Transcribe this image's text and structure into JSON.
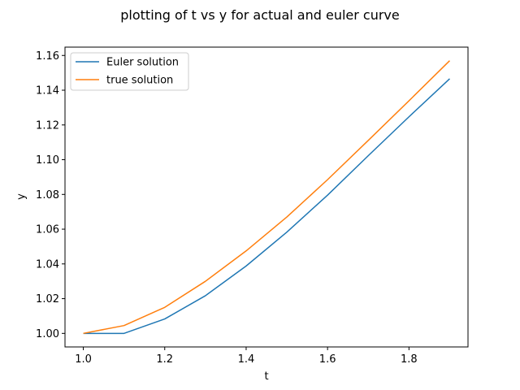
{
  "chart_data": {
    "type": "line",
    "title": "plotting of t vs y for actual and euler curve",
    "xlabel": "t",
    "ylabel": "y",
    "xlim": [
      0.955,
      1.945
    ],
    "ylim": [
      0.9922,
      1.1648
    ],
    "xticks": [
      1.0,
      1.2,
      1.4,
      1.6,
      1.8
    ],
    "xtick_labels": [
      "1.0",
      "1.2",
      "1.4",
      "1.6",
      "1.8"
    ],
    "yticks": [
      1.0,
      1.02,
      1.04,
      1.06,
      1.08,
      1.1,
      1.12,
      1.14,
      1.16
    ],
    "ytick_labels": [
      "1.00",
      "1.02",
      "1.04",
      "1.06",
      "1.08",
      "1.10",
      "1.12",
      "1.14",
      "1.16"
    ],
    "grid": false,
    "legend_position": "top-left",
    "x": [
      1.0,
      1.1,
      1.2,
      1.3,
      1.4,
      1.5,
      1.6,
      1.7,
      1.8,
      1.9
    ],
    "series": [
      {
        "name": "Euler solution",
        "color": "#1f77b4",
        "values": [
          1.0,
          1.0,
          1.0083,
          1.0217,
          1.0388,
          1.0583,
          1.0796,
          1.1023,
          1.1247,
          1.1466
        ]
      },
      {
        "name": "true solution",
        "color": "#ff7f0e",
        "values": [
          1.0,
          1.0045,
          1.015,
          1.03,
          1.0475,
          1.067,
          1.0885,
          1.1111,
          1.1339,
          1.157
        ]
      }
    ]
  }
}
